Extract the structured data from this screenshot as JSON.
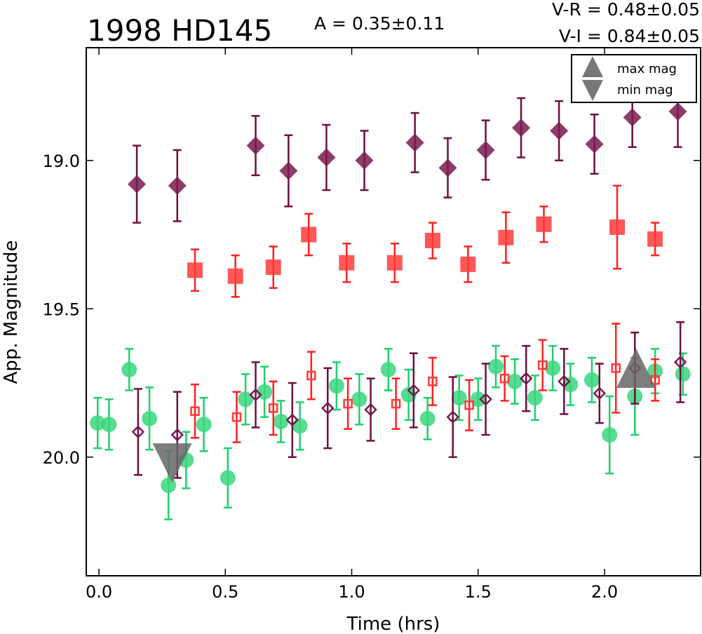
{
  "chart_data": {
    "type": "scatter",
    "title": "1998 HD145",
    "amplitude_text": "A  = 0.35±0.11",
    "color_text": [
      "V-R = 0.48±0.05",
      "V-I  = 0.84±0.05"
    ],
    "xlabel": "Time (hrs)",
    "ylabel": "App. Magnitude",
    "xlim": [
      -0.05,
      2.38
    ],
    "ylim": [
      20.4,
      18.62
    ],
    "y_inverted": true,
    "xticks": [
      0.0,
      0.5,
      1.0,
      1.5,
      2.0
    ],
    "xtick_labels": [
      "0.0",
      "0.5",
      "1.0",
      "1.5",
      "2.0"
    ],
    "yticks": [
      19.0,
      19.5,
      20.0
    ],
    "ytick_labels": [
      "19.0",
      "19.5",
      "20.0"
    ],
    "legend": {
      "position": "top-right",
      "entries": [
        {
          "label": "max mag",
          "marker": "triangle-up",
          "color": "#777777"
        },
        {
          "label": "min mag",
          "marker": "triangle-down",
          "color": "#777777"
        }
      ]
    },
    "series": [
      {
        "marker": "diamond",
        "color": "#7a1a4f",
        "err_color": "#6b0f3f",
        "filled": true,
        "points": [
          {
            "x": 0.15,
            "y": 19.08,
            "err": 0.13
          },
          {
            "x": 0.31,
            "y": 19.085,
            "err": 0.12
          },
          {
            "x": 0.62,
            "y": 18.95,
            "err": 0.1
          },
          {
            "x": 0.75,
            "y": 19.035,
            "err": 0.12
          },
          {
            "x": 0.9,
            "y": 18.99,
            "err": 0.11
          },
          {
            "x": 1.05,
            "y": 19.0,
            "err": 0.1
          },
          {
            "x": 1.25,
            "y": 18.94,
            "err": 0.1
          },
          {
            "x": 1.38,
            "y": 19.025,
            "err": 0.1
          },
          {
            "x": 1.53,
            "y": 18.965,
            "err": 0.1
          },
          {
            "x": 1.67,
            "y": 18.89,
            "err": 0.1
          },
          {
            "x": 1.82,
            "y": 18.9,
            "err": 0.1
          },
          {
            "x": 1.96,
            "y": 18.945,
            "err": 0.1
          },
          {
            "x": 2.11,
            "y": 18.855,
            "err": 0.1
          },
          {
            "x": 2.29,
            "y": 18.835,
            "err": 0.12
          }
        ]
      },
      {
        "marker": "square",
        "color": "#ff3b3b",
        "err_color": "#ff2020",
        "filled": true,
        "points": [
          {
            "x": 0.38,
            "y": 19.37,
            "err": 0.07
          },
          {
            "x": 0.54,
            "y": 19.39,
            "err": 0.07
          },
          {
            "x": 0.69,
            "y": 19.36,
            "err": 0.07
          },
          {
            "x": 0.83,
            "y": 19.25,
            "err": 0.07
          },
          {
            "x": 0.98,
            "y": 19.345,
            "err": 0.065
          },
          {
            "x": 1.17,
            "y": 19.345,
            "err": 0.065
          },
          {
            "x": 1.32,
            "y": 19.27,
            "err": 0.06
          },
          {
            "x": 1.46,
            "y": 19.35,
            "err": 0.06
          },
          {
            "x": 1.61,
            "y": 19.26,
            "err": 0.085
          },
          {
            "x": 1.76,
            "y": 19.215,
            "err": 0.06
          },
          {
            "x": 2.05,
            "y": 19.225,
            "err": 0.14
          },
          {
            "x": 2.2,
            "y": 19.265,
            "err": 0.055
          }
        ]
      },
      {
        "marker": "circle",
        "color": "#3ad67e",
        "err_color": "#1ed06e",
        "filled": true,
        "points": [
          {
            "x": -0.005,
            "y": 19.885,
            "err": 0.085
          },
          {
            "x": 0.04,
            "y": 19.89,
            "err": 0.085
          },
          {
            "x": 0.12,
            "y": 19.705,
            "err": 0.07
          },
          {
            "x": 0.2,
            "y": 19.87,
            "err": 0.105
          },
          {
            "x": 0.275,
            "y": 20.095,
            "err": 0.115
          },
          {
            "x": 0.345,
            "y": 20.01,
            "err": 0.095
          },
          {
            "x": 0.415,
            "y": 19.89,
            "err": 0.09
          },
          {
            "x": 0.51,
            "y": 20.07,
            "err": 0.1
          },
          {
            "x": 0.58,
            "y": 19.805,
            "err": 0.085
          },
          {
            "x": 0.655,
            "y": 19.78,
            "err": 0.085
          },
          {
            "x": 0.72,
            "y": 19.88,
            "err": 0.07
          },
          {
            "x": 0.795,
            "y": 19.895,
            "err": 0.08
          },
          {
            "x": 0.94,
            "y": 19.76,
            "err": 0.08
          },
          {
            "x": 1.03,
            "y": 19.805,
            "err": 0.085
          },
          {
            "x": 1.145,
            "y": 19.705,
            "err": 0.07
          },
          {
            "x": 1.225,
            "y": 19.79,
            "err": 0.085
          },
          {
            "x": 1.3,
            "y": 19.87,
            "err": 0.07
          },
          {
            "x": 1.425,
            "y": 19.8,
            "err": 0.075
          },
          {
            "x": 1.5,
            "y": 19.805,
            "err": 0.07
          },
          {
            "x": 1.57,
            "y": 19.695,
            "err": 0.07
          },
          {
            "x": 1.645,
            "y": 19.745,
            "err": 0.075
          },
          {
            "x": 1.725,
            "y": 19.8,
            "err": 0.075
          },
          {
            "x": 1.795,
            "y": 19.7,
            "err": 0.075
          },
          {
            "x": 1.865,
            "y": 19.755,
            "err": 0.07
          },
          {
            "x": 1.95,
            "y": 19.74,
            "err": 0.075
          },
          {
            "x": 2.02,
            "y": 19.925,
            "err": 0.13
          },
          {
            "x": 2.12,
            "y": 19.795,
            "err": 0.13
          },
          {
            "x": 2.2,
            "y": 19.71,
            "err": 0.075
          },
          {
            "x": 2.31,
            "y": 19.72,
            "err": 0.07
          }
        ]
      },
      {
        "marker": "diamond",
        "color": "#7a1a4f",
        "err_color": "#6b0f3f",
        "filled": false,
        "points": [
          {
            "x": 0.155,
            "y": 19.915,
            "err": 0.145
          },
          {
            "x": 0.31,
            "y": 19.925,
            "err": 0.145
          },
          {
            "x": 0.62,
            "y": 19.79,
            "err": 0.11
          },
          {
            "x": 0.765,
            "y": 19.875,
            "err": 0.125
          },
          {
            "x": 0.905,
            "y": 19.835,
            "err": 0.135
          },
          {
            "x": 1.075,
            "y": 19.84,
            "err": 0.105
          },
          {
            "x": 1.245,
            "y": 19.775,
            "err": 0.125
          },
          {
            "x": 1.4,
            "y": 19.865,
            "err": 0.135
          },
          {
            "x": 1.53,
            "y": 19.805,
            "err": 0.12
          },
          {
            "x": 1.69,
            "y": 19.735,
            "err": 0.11
          },
          {
            "x": 1.84,
            "y": 19.745,
            "err": 0.11
          },
          {
            "x": 1.98,
            "y": 19.785,
            "err": 0.1
          },
          {
            "x": 2.12,
            "y": 19.7,
            "err": 0.12
          },
          {
            "x": 2.3,
            "y": 19.68,
            "err": 0.135
          }
        ]
      },
      {
        "marker": "square",
        "color": "#ff3b3b",
        "err_color": "#ff2020",
        "filled": false,
        "points": [
          {
            "x": 0.38,
            "y": 19.845,
            "err": 0.09
          },
          {
            "x": 0.545,
            "y": 19.865,
            "err": 0.085
          },
          {
            "x": 0.69,
            "y": 19.835,
            "err": 0.09
          },
          {
            "x": 0.84,
            "y": 19.725,
            "err": 0.08
          },
          {
            "x": 0.985,
            "y": 19.82,
            "err": 0.085
          },
          {
            "x": 1.175,
            "y": 19.82,
            "err": 0.085
          },
          {
            "x": 1.32,
            "y": 19.745,
            "err": 0.08
          },
          {
            "x": 1.465,
            "y": 19.825,
            "err": 0.085
          },
          {
            "x": 1.605,
            "y": 19.735,
            "err": 0.075
          },
          {
            "x": 1.755,
            "y": 19.69,
            "err": 0.085
          },
          {
            "x": 2.045,
            "y": 19.7,
            "err": 0.15
          },
          {
            "x": 2.2,
            "y": 19.74,
            "err": 0.07
          }
        ]
      }
    ],
    "extremes": [
      {
        "kind": "max mag",
        "marker": "triangle-up",
        "x": 2.125,
        "y": 19.705
      },
      {
        "kind": "min mag",
        "marker": "triangle-down",
        "x": 0.29,
        "y": 20.015
      }
    ]
  }
}
